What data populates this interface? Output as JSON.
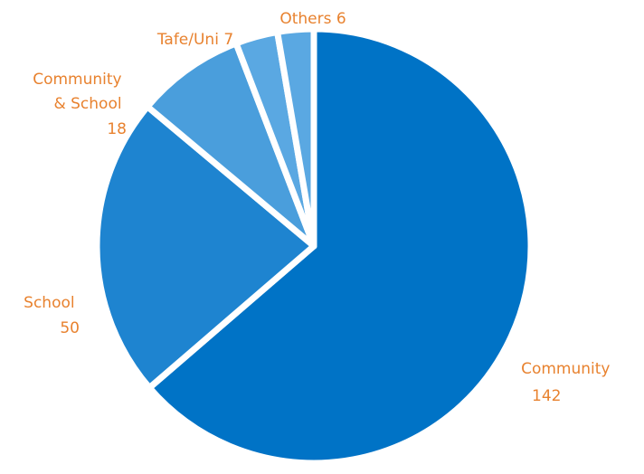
{
  "chart_data": {
    "type": "pie",
    "slices": [
      {
        "name": "Community",
        "value": 142,
        "color": "#0073C6"
      },
      {
        "name": "School",
        "value": 50,
        "color": "#1E84D0"
      },
      {
        "name": "Community & School",
        "value": 18,
        "color": "#4A9EDC"
      },
      {
        "name": "Tafe/Uni",
        "value": 7,
        "color": "#5AA8E2"
      },
      {
        "name": "Others",
        "value": 6,
        "color": "#5AA8E2"
      }
    ],
    "labels": {
      "community": {
        "line1": "Community",
        "line2": "142"
      },
      "school": {
        "line1": "School",
        "line2": "50"
      },
      "community_school": {
        "line1": "Community",
        "line2": "& School",
        "line3": "18"
      },
      "tafe": {
        "line1": "Tafe/Uni 7"
      },
      "others": {
        "line1": "Others 6"
      }
    },
    "label_color": "#E8822F"
  }
}
